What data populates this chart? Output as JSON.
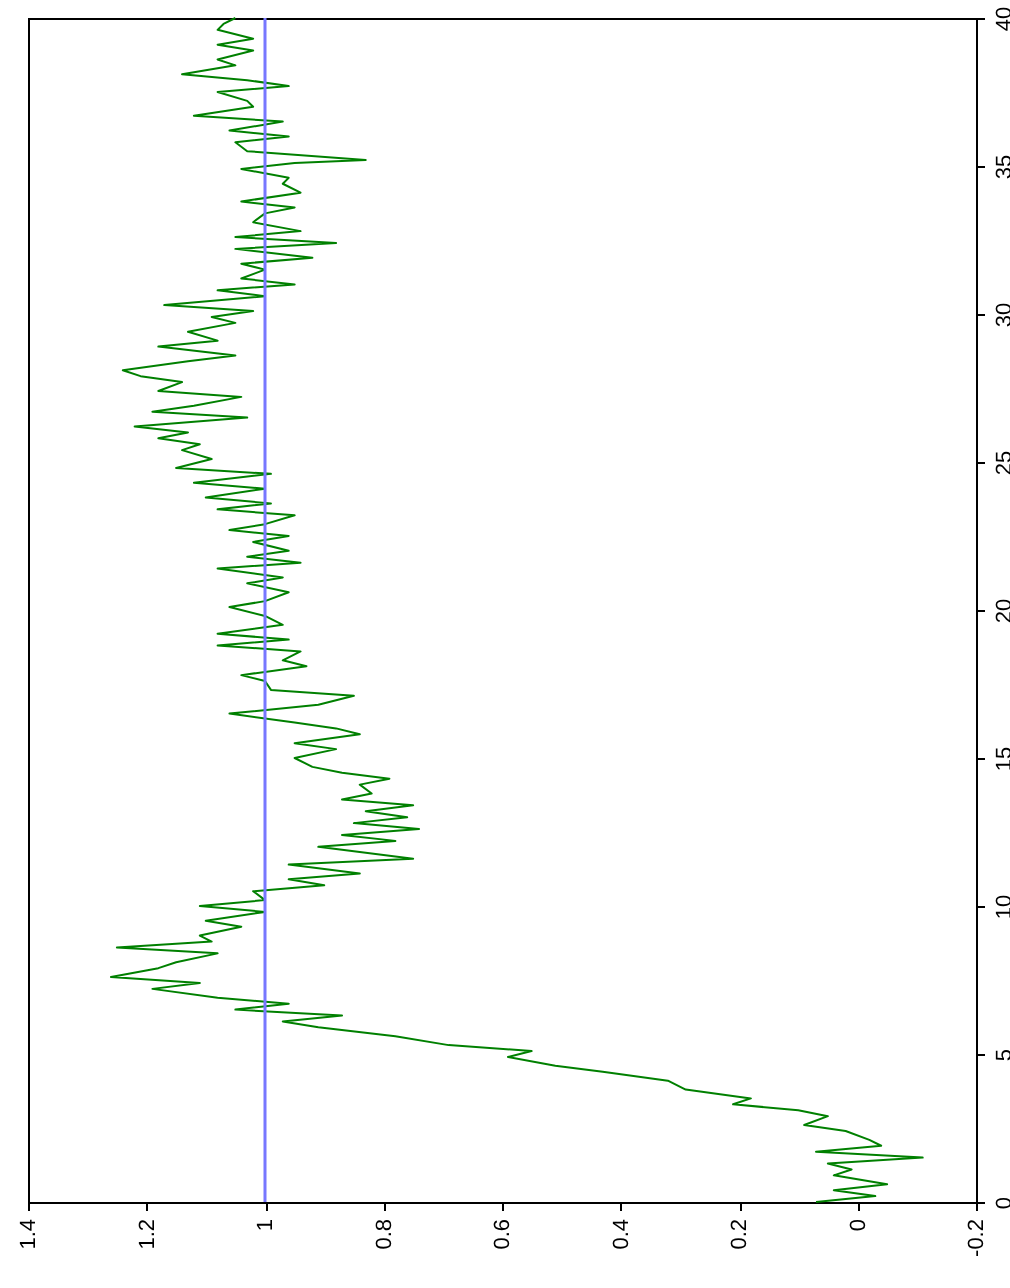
{
  "chart_data": {
    "type": "line",
    "series": [
      {
        "color": "#008000",
        "axis": "y2",
        "x": [
          0.07,
          -0.03,
          0.04,
          -0.05,
          0.04,
          0.01,
          0.05,
          -0.11,
          0.07,
          -0.04,
          -0.02,
          0.02,
          0.09,
          0.05,
          0.1,
          0.21,
          0.18,
          0.29,
          0.32,
          0.43,
          0.51,
          0.59,
          0.55,
          0.69,
          0.78,
          0.91,
          0.97,
          0.87,
          1.05,
          0.96,
          1.08,
          1.19,
          1.11,
          1.26,
          1.18,
          1.15,
          1.08,
          1.25,
          1.09,
          1.11,
          1.04,
          1.1,
          1.0,
          1.11,
          1.0,
          1.02,
          0.9,
          0.96,
          0.84,
          0.96,
          0.75,
          0.91,
          0.78,
          0.87,
          0.74,
          0.85,
          0.76,
          0.83,
          0.75,
          0.87,
          0.82,
          0.84,
          0.79,
          0.87,
          0.92,
          0.95,
          0.88,
          0.95,
          0.84,
          0.88,
          0.95,
          1.06,
          0.91,
          0.85,
          0.99,
          1.0,
          1.04,
          0.93,
          0.97,
          0.94,
          1.08,
          0.96,
          1.08,
          0.97,
          1.0,
          1.06,
          1.0,
          0.96,
          1.03,
          0.97,
          1.08,
          0.94,
          1.03,
          0.96,
          1.02,
          0.96,
          1.06,
          1.0,
          0.95,
          1.08,
          0.99,
          1.1,
          1.0,
          1.12,
          0.99,
          1.15,
          1.09,
          1.14,
          1.11,
          1.18,
          1.13,
          1.22,
          1.03,
          1.19,
          1.12,
          1.04,
          1.18,
          1.14,
          1.21,
          1.24,
          1.13,
          1.05,
          1.18,
          1.08,
          1.13,
          1.05,
          1.09,
          1.02,
          1.17,
          1.0,
          1.08,
          0.95,
          1.04,
          1.0,
          1.04,
          0.92,
          1.05,
          0.88,
          1.05,
          0.94,
          1.02,
          1.0,
          0.95,
          1.04,
          0.94,
          0.97,
          0.96,
          1.04,
          0.95,
          0.83,
          1.03,
          1.05,
          0.96,
          1.06,
          0.97,
          1.12,
          1.02,
          1.03,
          1.08,
          0.96,
          1.03,
          1.14,
          1.05,
          1.08,
          1.02,
          1.08,
          1.02,
          1.08,
          1.07,
          1.05
        ],
        "values": [
          0,
          0.2,
          0.4,
          0.6,
          0.9,
          1.1,
          1.3,
          1.5,
          1.7,
          1.9,
          2.1,
          2.4,
          2.6,
          2.9,
          3.1,
          3.3,
          3.5,
          3.8,
          4.1,
          4.4,
          4.6,
          4.9,
          5.1,
          5.3,
          5.6,
          5.9,
          6.1,
          6.3,
          6.5,
          6.7,
          6.9,
          7.2,
          7.4,
          7.6,
          7.9,
          8.1,
          8.4,
          8.6,
          8.8,
          9.0,
          9.3,
          9.5,
          9.8,
          10,
          10.2,
          10.5,
          10.7,
          10.9,
          11.1,
          11.4,
          11.6,
          12.0,
          12.2,
          12.4,
          12.6,
          12.8,
          13.0,
          13.2,
          13.4,
          13.6,
          13.8,
          14.1,
          14.3,
          14.5,
          14.7,
          15,
          15.3,
          15.5,
          15.8,
          16,
          16.2,
          16.5,
          16.8,
          17.1,
          17.3,
          17.6,
          17.8,
          18.1,
          18.3,
          18.6,
          18.8,
          19,
          19.2,
          19.5,
          19.8,
          20.1,
          20.3,
          20.6,
          20.9,
          21.1,
          21.4,
          21.6,
          21.8,
          22,
          22.3,
          22.5,
          22.7,
          22.9,
          23.2,
          23.4,
          23.6,
          23.8,
          24.1,
          24.3,
          24.6,
          24.8,
          25.1,
          25.4,
          25.6,
          25.8,
          26,
          26.2,
          26.5,
          26.7,
          26.9,
          27.2,
          27.4,
          27.7,
          27.9,
          28.1,
          28.4,
          28.6,
          28.9,
          29.1,
          29.4,
          29.7,
          29.9,
          30.1,
          30.3,
          30.6,
          30.8,
          31,
          31.2,
          31.5,
          31.7,
          31.9,
          32.2,
          32.4,
          32.6,
          32.8,
          33.1,
          33.4,
          33.6,
          33.8,
          34.1,
          34.4,
          34.6,
          34.9,
          35.1,
          35.2,
          35.5,
          35.8,
          36,
          36.2,
          36.5,
          36.7,
          37,
          37.2,
          37.5,
          37.7,
          37.9,
          38.1,
          38.4,
          38.6,
          38.9,
          39.1,
          39.3,
          39.6,
          39.8,
          40
        ]
      }
    ],
    "xlim": [
      1.4,
      -0.2
    ],
    "xticks": [
      1.4,
      1.2,
      1,
      0.8,
      0.6,
      0.4,
      0.2,
      0,
      -0.2
    ],
    "y2lim": [
      0,
      40
    ],
    "y2ticks": [
      0,
      5,
      10,
      15,
      20,
      25,
      30,
      35,
      40
    ],
    "ref_lines": [
      {
        "axis": "x",
        "value": 1,
        "color": "#7777ff"
      }
    ],
    "grid": false
  }
}
